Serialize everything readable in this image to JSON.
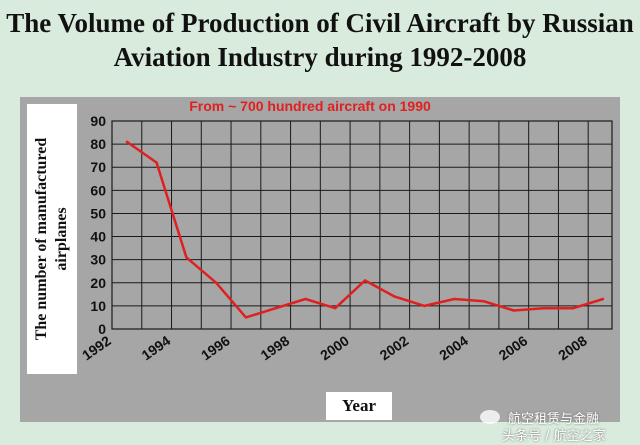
{
  "chart_data": {
    "type": "line",
    "title_line1": "The Volume of Production of Civil Aircraft by Russian",
    "title_line2": "Aviation Industry during 1992-2008",
    "annotation": "From ~ 700 hundred aircraft on 1990",
    "ylabel_line1": "The number of manufactured",
    "ylabel_line2": "airplanes",
    "xlabel": "Year",
    "xlim": [
      1992,
      2008.8
    ],
    "ylim": [
      0,
      90
    ],
    "yticks": [
      0,
      10,
      20,
      30,
      40,
      50,
      60,
      70,
      80,
      90
    ],
    "xtick_labels": [
      "1992",
      "1994",
      "1996",
      "1998",
      "2000",
      "2002",
      "2004",
      "2006",
      "2008"
    ],
    "grid": true,
    "series": [
      {
        "x": [
          1992.5,
          1993.5,
          1994.5,
          1995.5,
          1996.5,
          1997.5,
          1998.5,
          1999.5,
          2000.5,
          2001.5,
          2002.5,
          2003.5,
          2004.5,
          2005.5,
          2006.5,
          2007.5,
          2008.5
        ],
        "values": [
          81,
          72,
          31,
          20,
          5,
          9,
          13,
          9,
          21,
          14,
          10,
          13,
          12,
          8,
          9,
          9,
          13
        ]
      }
    ],
    "line_color": "#e02020",
    "axis_color": "#1a1a1a",
    "plot_bg": "#a6a6a6",
    "page_bg": "#d8ebdc"
  },
  "watermark": {
    "line1": "航空租赁与金融",
    "line2": "头条号 / 航空之家"
  }
}
